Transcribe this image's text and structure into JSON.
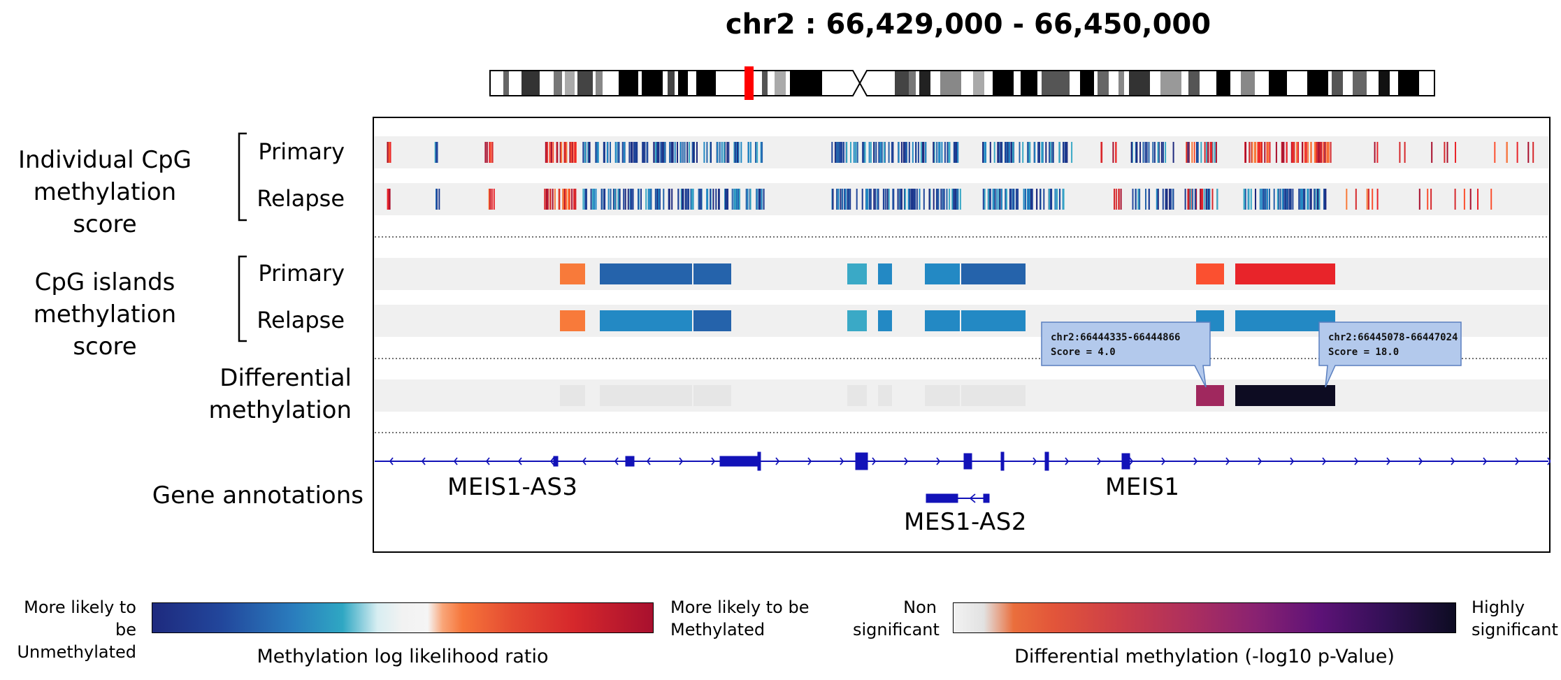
{
  "title": "chr2 : 66,429,000 - 66,450,000",
  "labels": {
    "cpg_individual": "Individual CpG\nmethylation score",
    "cpg_islands": "CpG islands\nmethylation score",
    "differential": "Differential\nmethylation",
    "genes": "Gene annotations",
    "primary": "Primary",
    "relapse": "Relapse"
  },
  "genes": [
    "MEIS1-AS3",
    "MES1-AS2",
    "MEIS1"
  ],
  "tooltips": [
    {
      "region": "chr2:66444335-66444866",
      "score": "Score = 4.0"
    },
    {
      "region": "chr2:66445078-66447024",
      "score": "Score = 18.0"
    }
  ],
  "legend1": {
    "left": "More likely to be\nUnmethylated",
    "right": "More likely to be\nMethylated",
    "title": "Methylation log likelihood ratio"
  },
  "legend2": {
    "left": "Non\nsignificant",
    "right": "Highly\nsignificant",
    "title": "Differential methylation (-log10 p-Value)"
  },
  "colors": {
    "dark_blue": "#2563ab",
    "mid_blue": "#2389c4",
    "light_blue": "#3aa9c6",
    "orange": "#f87a3a",
    "red_orange": "#fb5030",
    "red": "#e8242a",
    "dark_red": "#a8102e",
    "diff_magenta": "#a0285e",
    "diff_black": "#0d0c22",
    "ideogram_highlight": "#ff0000"
  }
}
